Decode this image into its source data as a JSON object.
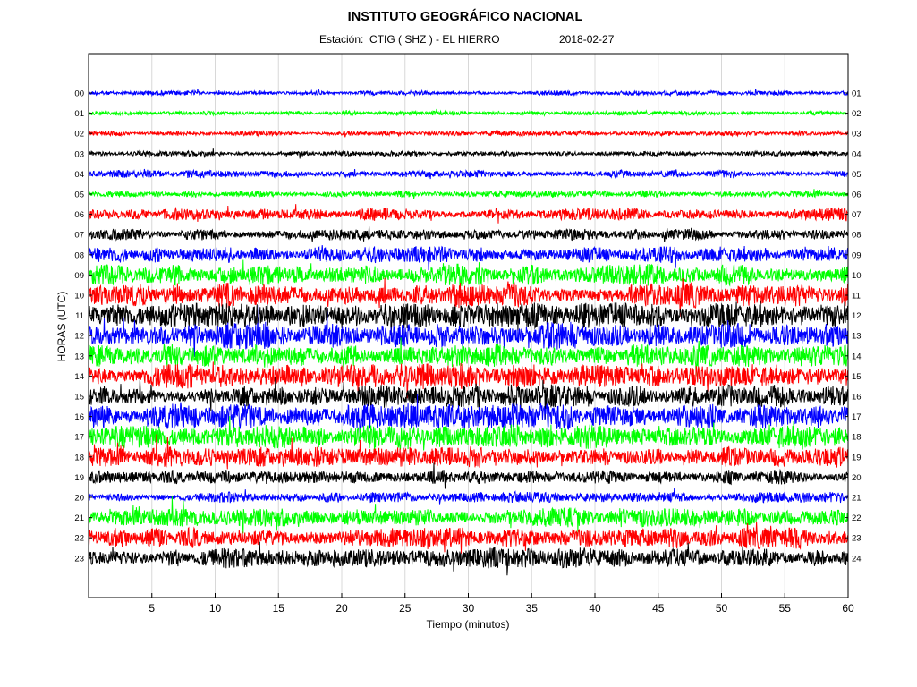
{
  "chart_data": {
    "type": "line",
    "title": "INSTITUTO GEOGRÁFICO NACIONAL",
    "station_label": "Estación:  CTIG ( SHZ ) - EL HIERRO",
    "date": "2018-02-27",
    "xlabel": "Tiempo (minutos)",
    "ylabel": "HORAS (UTC)",
    "xlim": [
      0,
      60
    ],
    "x_ticks": [
      5,
      10,
      15,
      20,
      25,
      30,
      35,
      40,
      45,
      50,
      55,
      60
    ],
    "left_tick_labels": [
      "00",
      "01",
      "02",
      "03",
      "04",
      "05",
      "06",
      "07",
      "08",
      "09",
      "10",
      "11",
      "12",
      "13",
      "14",
      "15",
      "16",
      "17",
      "18",
      "19",
      "20",
      "21",
      "22",
      "23"
    ],
    "right_tick_labels": [
      "01",
      "02",
      "03",
      "04",
      "05",
      "06",
      "07",
      "08",
      "09",
      "10",
      "11",
      "12",
      "13",
      "14",
      "15",
      "16",
      "17",
      "18",
      "19",
      "20",
      "21",
      "22",
      "23",
      "24"
    ],
    "grid": "vertical",
    "trace_colors": [
      "#0000ff",
      "#00ff00",
      "#ff0000",
      "#000000"
    ],
    "trace_relative_amplitude": [
      0.18,
      0.17,
      0.18,
      0.2,
      0.3,
      0.26,
      0.5,
      0.42,
      0.62,
      0.85,
      0.95,
      1.0,
      1.0,
      0.95,
      0.95,
      0.92,
      0.95,
      0.92,
      0.8,
      0.55,
      0.42,
      0.7,
      0.85,
      0.75
    ]
  }
}
